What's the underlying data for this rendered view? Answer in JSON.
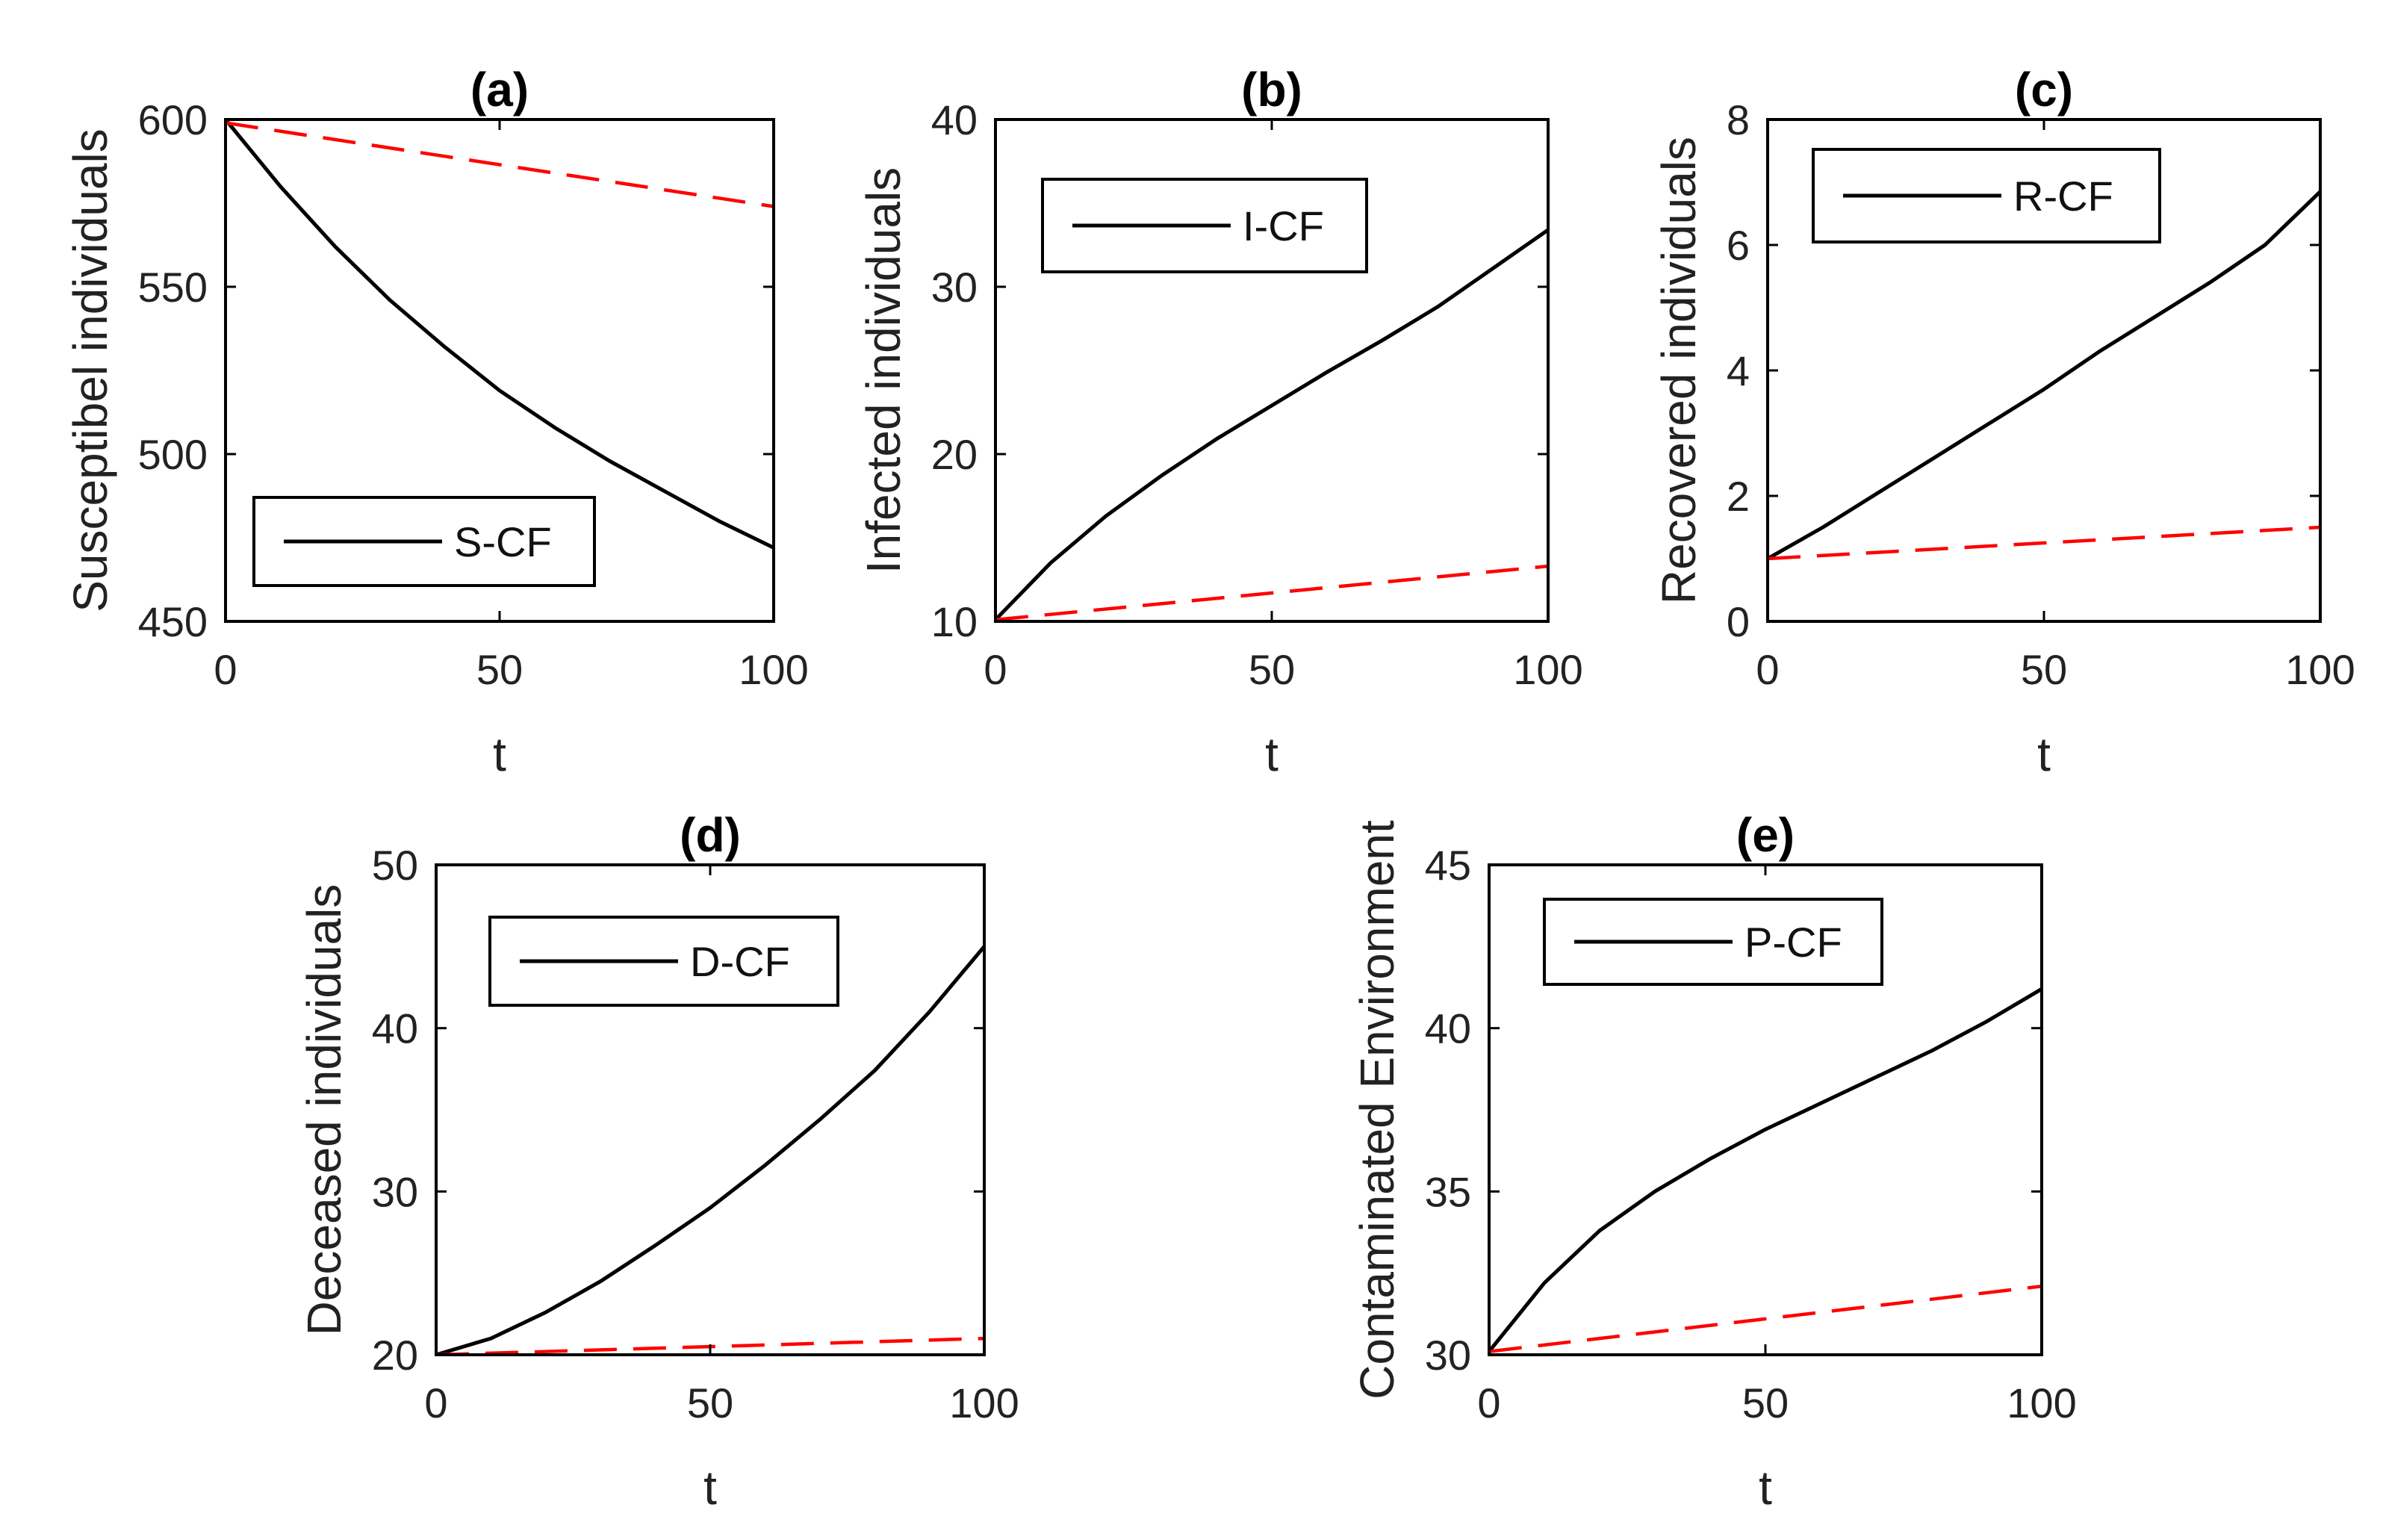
{
  "chart_data": [
    {
      "type": "line",
      "title": "(a)",
      "xlabel": "t",
      "ylabel": "Susceptibel individuals",
      "xlim": [
        0,
        100
      ],
      "ylim": [
        450,
        600
      ],
      "xticks": [
        "0",
        "50",
        "100"
      ],
      "yticks": [
        "450",
        "500",
        "550",
        "600"
      ],
      "legend": {
        "label": "S-CF",
        "placement": "bottom-left"
      },
      "series": [
        {
          "name": "S-CF",
          "style": "solid",
          "color": "#000000",
          "x": [
            0,
            10,
            20,
            30,
            40,
            50,
            60,
            70,
            80,
            90,
            100
          ],
          "y": [
            600,
            580,
            562,
            546,
            532,
            519,
            508,
            498,
            489,
            480,
            472
          ]
        },
        {
          "name": "unlabeled (dashed)",
          "style": "dashed",
          "color": "#ff0000",
          "x": [
            0,
            100
          ],
          "y": [
            599,
            574
          ]
        }
      ]
    },
    {
      "type": "line",
      "title": "(b)",
      "xlabel": "t",
      "ylabel": "Infected individuals",
      "xlim": [
        0,
        100
      ],
      "ylim": [
        10,
        40
      ],
      "xticks": [
        "0",
        "50",
        "100"
      ],
      "yticks": [
        "10",
        "20",
        "30",
        "40"
      ],
      "legend": {
        "label": "I-CF",
        "placement": "top-left"
      },
      "series": [
        {
          "name": "I-CF",
          "style": "solid",
          "color": "#000000",
          "x": [
            0,
            10,
            20,
            30,
            40,
            50,
            60,
            70,
            80,
            90,
            100
          ],
          "y": [
            10.1,
            13.5,
            16.3,
            18.7,
            20.9,
            22.9,
            24.9,
            26.8,
            28.8,
            31.1,
            33.4
          ]
        },
        {
          "name": "unlabeled (dashed)",
          "style": "dashed",
          "color": "#ff0000",
          "x": [
            0,
            100
          ],
          "y": [
            10.1,
            13.3
          ]
        }
      ]
    },
    {
      "type": "line",
      "title": "(c)",
      "xlabel": "t",
      "ylabel": "Recovered individuals",
      "xlim": [
        0,
        100
      ],
      "ylim": [
        0,
        8
      ],
      "xticks": [
        "0",
        "50",
        "100"
      ],
      "yticks": [
        "0",
        "2",
        "4",
        "6",
        "8"
      ],
      "legend": {
        "label": "R-CF",
        "placement": "top-left"
      },
      "series": [
        {
          "name": "R-CF",
          "style": "solid",
          "color": "#000000",
          "x": [
            0,
            10,
            20,
            30,
            40,
            50,
            60,
            70,
            80,
            90,
            100
          ],
          "y": [
            1.0,
            1.5,
            2.05,
            2.6,
            3.15,
            3.7,
            4.3,
            4.85,
            5.4,
            6.0,
            6.85
          ]
        },
        {
          "name": "unlabeled (dashed)",
          "style": "dashed",
          "color": "#ff0000",
          "x": [
            0,
            100
          ],
          "y": [
            1.0,
            1.5
          ]
        }
      ]
    },
    {
      "type": "line",
      "title": "(d)",
      "xlabel": "t",
      "ylabel": "Deceased individuals",
      "xlim": [
        0,
        100
      ],
      "ylim": [
        20,
        50
      ],
      "xticks": [
        "0",
        "50",
        "100"
      ],
      "yticks": [
        "20",
        "30",
        "40",
        "50"
      ],
      "legend": {
        "label": "D-CF",
        "placement": "top-left"
      },
      "series": [
        {
          "name": "D-CF",
          "style": "solid",
          "color": "#000000",
          "x": [
            0,
            10,
            20,
            30,
            40,
            50,
            60,
            70,
            80,
            90,
            100
          ],
          "y": [
            20.0,
            21.0,
            22.6,
            24.5,
            26.7,
            29.0,
            31.6,
            34.4,
            37.4,
            41.0,
            45.0
          ]
        },
        {
          "name": "unlabeled (dashed)",
          "style": "dashed",
          "color": "#ff0000",
          "x": [
            0,
            100
          ],
          "y": [
            20.0,
            21.0
          ]
        }
      ]
    },
    {
      "type": "line",
      "title": "(e)",
      "xlabel": "t",
      "ylabel": "Contaminated Environment",
      "xlim": [
        0,
        100
      ],
      "ylim": [
        30,
        45
      ],
      "xticks": [
        "0",
        "50",
        "100"
      ],
      "yticks": [
        "30",
        "35",
        "40",
        "45"
      ],
      "legend": {
        "label": "P-CF",
        "placement": "top-left"
      },
      "series": [
        {
          "name": "P-CF",
          "style": "solid",
          "color": "#000000",
          "x": [
            0,
            10,
            20,
            30,
            40,
            50,
            60,
            70,
            80,
            90,
            100
          ],
          "y": [
            30.1,
            32.2,
            33.8,
            35.0,
            36.0,
            36.9,
            37.7,
            38.5,
            39.3,
            40.2,
            41.2
          ]
        },
        {
          "name": "unlabeled (dashed)",
          "style": "dashed",
          "color": "#ff0000",
          "x": [
            0,
            100
          ],
          "y": [
            30.1,
            32.1
          ]
        }
      ]
    }
  ]
}
